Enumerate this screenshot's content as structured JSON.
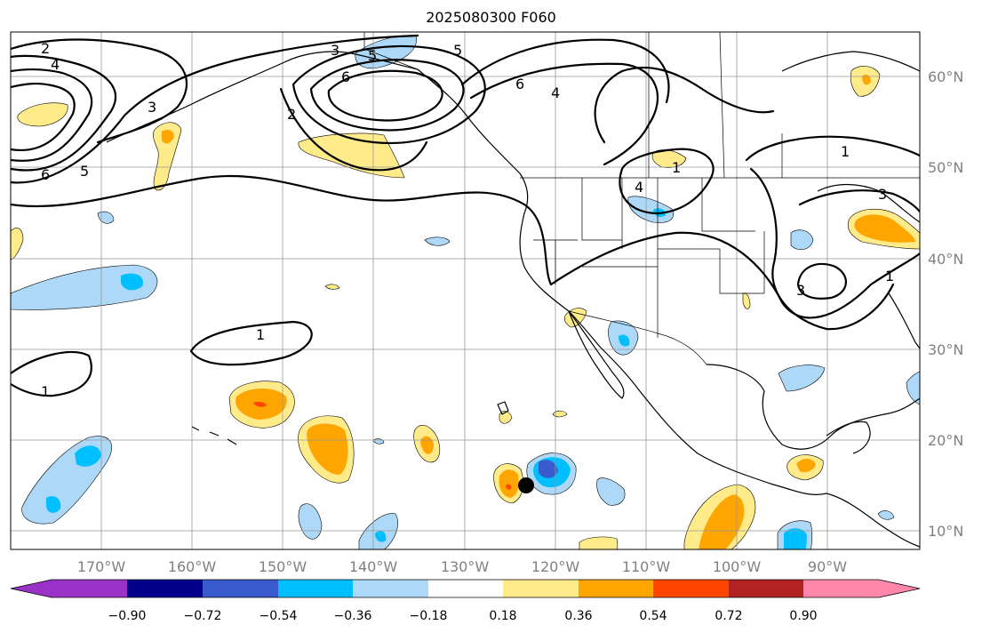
{
  "title": "2025080300 F060",
  "map": {
    "lon_labels": [
      "170°W",
      "160°W",
      "150°W",
      "140°W",
      "130°W",
      "120°W",
      "110°W",
      "100°W",
      "90°W"
    ],
    "lat_labels": [
      "60°N",
      "50°N",
      "40°N",
      "30°N",
      "20°N",
      "10°N"
    ],
    "contour_labels": [
      "2",
      "4",
      "6",
      "5",
      "3",
      "5",
      "6",
      "2",
      "5",
      "6",
      "4",
      "1",
      "1",
      "3",
      "4",
      "1",
      "3",
      "3",
      "1",
      "1"
    ],
    "marker": "black-dot"
  },
  "colorbar": {
    "colors": [
      "#9b32c8",
      "#00008b",
      "#3a5bcd",
      "#00bfff",
      "#add8f7",
      "#ffffff",
      "#ffeb8a",
      "#ffa500",
      "#ff4500",
      "#b22222",
      "#ff88aa"
    ],
    "ticks": [
      "−0.90",
      "−0.72",
      "−0.54",
      "−0.36",
      "−0.18",
      "0.18",
      "0.36",
      "0.54",
      "0.72",
      "0.90"
    ]
  },
  "palette": {
    "lightblue": "#add8f7",
    "blue": "#00bfff",
    "medblue": "#3a5bcd",
    "yellow": "#ffeb8a",
    "orange": "#ffa500",
    "red": "#ff4500",
    "grid": "#999999"
  }
}
